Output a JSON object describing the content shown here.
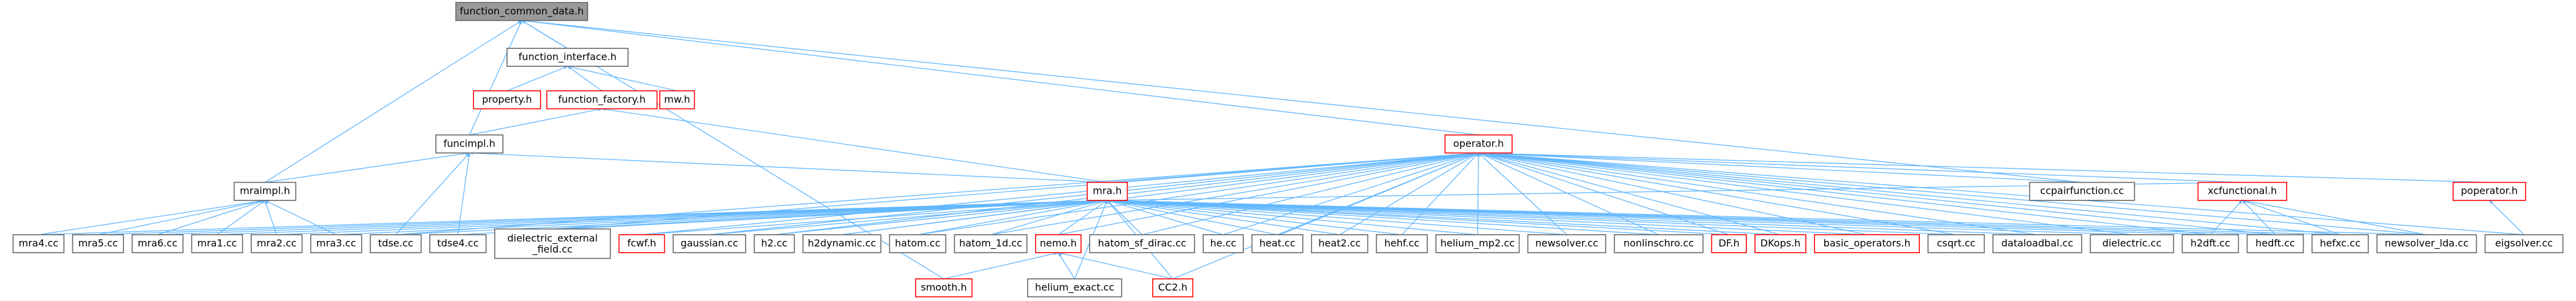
{
  "nodes": [
    "function_common_data.h",
    "function_interface.h",
    "property.h",
    "function_factory.h",
    "mw.h",
    "funcimpl.h",
    "operator.h",
    "mraimpl.h",
    "mra.h",
    "ccpairfunction.cc",
    "xcfunctional.h",
    "poperator.h",
    "mra4.cc",
    "mra5.cc",
    "mra6.cc",
    "mra1.cc",
    "mra2.cc",
    "mra3.cc",
    "tdse.cc",
    "tdse4.cc",
    "dielectric_external_field.cc",
    "fcwf.h",
    "gaussian.cc",
    "h2.cc",
    "h2dynamic.cc",
    "hatom.cc",
    "hatom_1d.cc",
    "nemo.h",
    "hatom_sf_dirac.cc",
    "he.cc",
    "heat.cc",
    "heat2.cc",
    "hehf.cc",
    "helium_mp2.cc",
    "newsolver.cc",
    "nonlinschro.cc",
    "DF.h",
    "DKops.h",
    "basic_operators.h",
    "csqrt.cc",
    "dataloadbal.cc",
    "dielectric.cc",
    "h2dft.cc",
    "hedft.cc",
    "hefxc.cc",
    "newsolver_lda.cc",
    "eigsolver.cc",
    "smooth.h",
    "helium_exact.cc",
    "CC2.h"
  ]
}
